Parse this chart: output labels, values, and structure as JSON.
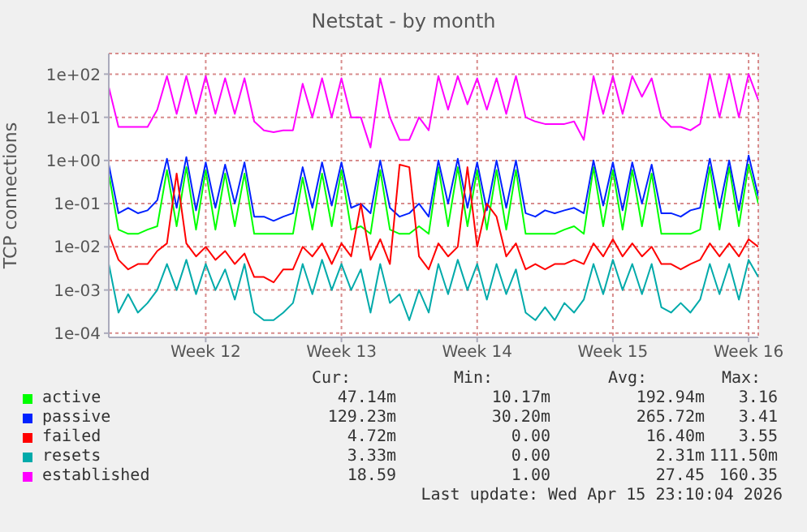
{
  "chart_data": {
    "type": "line",
    "title": "Netstat - by month",
    "ylabel": "TCP connections",
    "categories": [
      null,
      null,
      null,
      null,
      null,
      null,
      null,
      null,
      null,
      null,
      "Week 12",
      null,
      null,
      null,
      null,
      null,
      null,
      null,
      null,
      null,
      null,
      null,
      null,
      null,
      "Week 13",
      null,
      null,
      null,
      null,
      null,
      null,
      null,
      null,
      null,
      null,
      null,
      null,
      null,
      "Week 14",
      null,
      null,
      null,
      null,
      null,
      null,
      null,
      null,
      null,
      null,
      null,
      null,
      null,
      "Week 15",
      null,
      null,
      null,
      null,
      null,
      null,
      null,
      null,
      null,
      null,
      null,
      null,
      null,
      "Week 16",
      null
    ],
    "series": [
      {
        "name": "active",
        "color": "#00ff00",
        "values": [
          0.5,
          0.025,
          0.02,
          0.02,
          0.025,
          0.03,
          0.6,
          0.03,
          0.7,
          0.025,
          0.6,
          0.025,
          0.5,
          0.03,
          0.5,
          0.02,
          0.02,
          0.02,
          0.02,
          0.02,
          0.4,
          0.025,
          0.5,
          0.03,
          0.6,
          0.025,
          0.03,
          0.02,
          0.6,
          0.025,
          0.02,
          0.02,
          0.03,
          0.02,
          0.7,
          0.03,
          0.7,
          0.03,
          0.6,
          0.025,
          0.6,
          0.025,
          0.6,
          0.02,
          0.02,
          0.02,
          0.02,
          0.025,
          0.03,
          0.02,
          0.7,
          0.03,
          0.6,
          0.025,
          0.6,
          0.03,
          0.5,
          0.02,
          0.02,
          0.02,
          0.02,
          0.025,
          0.7,
          0.025,
          0.7,
          0.03,
          0.8,
          0.1
        ]
      },
      {
        "name": "passive",
        "color": "#0022ff",
        "values": [
          0.8,
          0.06,
          0.08,
          0.06,
          0.07,
          0.12,
          1.1,
          0.08,
          1.2,
          0.07,
          0.9,
          0.08,
          0.8,
          0.1,
          0.9,
          0.05,
          0.05,
          0.04,
          0.05,
          0.06,
          0.7,
          0.08,
          0.9,
          0.09,
          0.9,
          0.08,
          0.1,
          0.06,
          1.0,
          0.08,
          0.05,
          0.06,
          0.1,
          0.05,
          1.0,
          0.1,
          1.1,
          0.08,
          0.9,
          0.07,
          1.0,
          0.08,
          1.0,
          0.06,
          0.05,
          0.07,
          0.06,
          0.07,
          0.08,
          0.06,
          1.0,
          0.09,
          0.9,
          0.07,
          0.9,
          0.1,
          0.8,
          0.06,
          0.06,
          0.05,
          0.07,
          0.08,
          1.1,
          0.08,
          1.0,
          0.07,
          1.3,
          0.15
        ]
      },
      {
        "name": "failed",
        "color": "#ff0000",
        "values": [
          0.02,
          0.005,
          0.003,
          0.004,
          0.004,
          0.008,
          0.012,
          0.5,
          0.012,
          0.006,
          0.01,
          0.005,
          0.008,
          0.004,
          0.007,
          0.002,
          0.002,
          0.0015,
          0.003,
          0.003,
          0.01,
          0.006,
          0.012,
          0.004,
          0.012,
          0.006,
          0.1,
          0.005,
          0.015,
          0.004,
          0.8,
          0.7,
          0.006,
          0.003,
          0.012,
          0.006,
          0.01,
          0.7,
          0.01,
          0.1,
          0.05,
          0.006,
          0.012,
          0.003,
          0.004,
          0.003,
          0.004,
          0.004,
          0.005,
          0.004,
          0.012,
          0.006,
          0.015,
          0.006,
          0.012,
          0.006,
          0.01,
          0.004,
          0.004,
          0.003,
          0.004,
          0.005,
          0.012,
          0.006,
          0.012,
          0.006,
          0.015,
          0.01
        ]
      },
      {
        "name": "resets",
        "color": "#00aaaa",
        "values": [
          0.004,
          0.0003,
          0.0008,
          0.0003,
          0.0005,
          0.001,
          0.004,
          0.001,
          0.005,
          0.0008,
          0.004,
          0.001,
          0.003,
          0.0006,
          0.004,
          0.0003,
          0.0002,
          0.0002,
          0.0003,
          0.0005,
          0.004,
          0.0008,
          0.005,
          0.001,
          0.004,
          0.001,
          0.003,
          0.0003,
          0.004,
          0.0005,
          0.0008,
          0.0002,
          0.001,
          0.0003,
          0.004,
          0.0008,
          0.005,
          0.001,
          0.004,
          0.0006,
          0.004,
          0.0008,
          0.003,
          0.0003,
          0.0002,
          0.0004,
          0.0002,
          0.0005,
          0.0003,
          0.0006,
          0.004,
          0.0008,
          0.005,
          0.001,
          0.004,
          0.0008,
          0.004,
          0.0004,
          0.0003,
          0.0005,
          0.0003,
          0.0006,
          0.004,
          0.0008,
          0.004,
          0.0006,
          0.005,
          0.002
        ]
      },
      {
        "name": "established",
        "color": "#ff00ff",
        "values": [
          50,
          6,
          6,
          6,
          6,
          15,
          90,
          12,
          90,
          12,
          90,
          12,
          80,
          12,
          80,
          8,
          5,
          4.5,
          5,
          5,
          60,
          10,
          80,
          10,
          80,
          10,
          10,
          2,
          80,
          10,
          3,
          3,
          10,
          5,
          90,
          15,
          90,
          20,
          80,
          15,
          80,
          12,
          90,
          10,
          8,
          7,
          7,
          7,
          8,
          3,
          90,
          12,
          90,
          12,
          90,
          30,
          80,
          10,
          6,
          6,
          5,
          7,
          100,
          10,
          100,
          10,
          100,
          25
        ]
      }
    ],
    "log": "y",
    "ylim": [
      8e-05,
      300
    ],
    "yticks": [
      {
        "value": 0.0001,
        "label": "1e-04"
      },
      {
        "value": 0.001,
        "label": "1e-03"
      },
      {
        "value": 0.01,
        "label": "1e-02"
      },
      {
        "value": 0.1,
        "label": "1e-01"
      },
      {
        "value": 1,
        "label": "1e+00"
      },
      {
        "value": 10,
        "label": "1e+01"
      },
      {
        "value": 100,
        "label": "1e+02"
      }
    ],
    "grid": true,
    "legend": "bottom left",
    "marker": "none",
    "line_style": "solid",
    "annotations": [
      "Cur:",
      "Min:",
      "Avg:",
      "Max:",
      "47.14m",
      "10.17m",
      "192.94m",
      "3.16",
      "129.23m",
      "30.20m",
      "265.72m",
      "3.41",
      "4.72m",
      "0.00",
      "16.40m",
      "3.55",
      "3.33m",
      "0.00",
      "2.31m",
      "111.50m",
      "18.59",
      "1.00",
      "27.45",
      "160.35",
      "Last update: Wed Apr 15 23:10:04 2026"
    ]
  }
}
